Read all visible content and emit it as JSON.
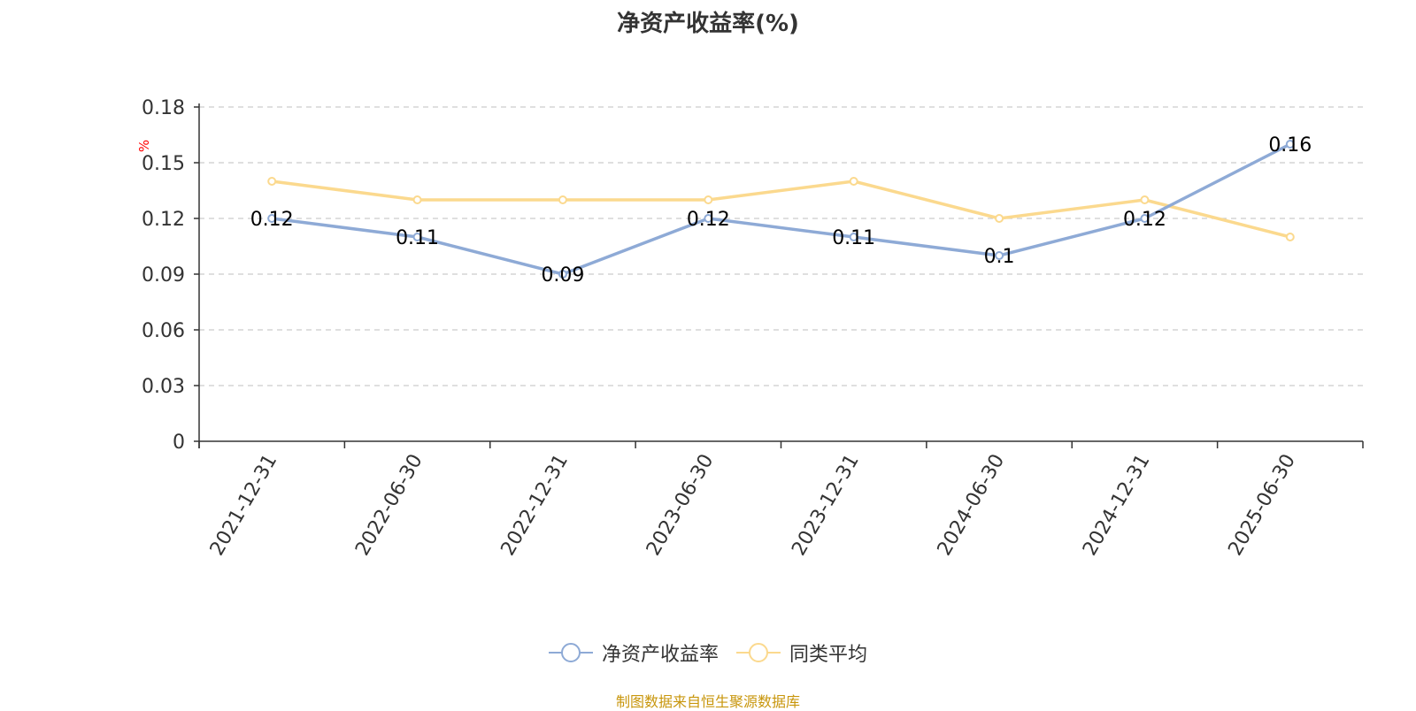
{
  "chart_data": {
    "type": "line",
    "title": "净资产收益率(%)",
    "ylabel": "%",
    "ylim": [
      0,
      0.18
    ],
    "yticks": [
      "0",
      "0.03",
      "0.06",
      "0.09",
      "0.12",
      "0.15",
      "0.18"
    ],
    "grid": true,
    "legend_position": "bottom",
    "categories": [
      "2021-12-31",
      "2022-06-30",
      "2022-12-31",
      "2023-06-30",
      "2023-12-31",
      "2024-06-30",
      "2024-12-31",
      "2025-06-30"
    ],
    "series": [
      {
        "name": "净资产收益率",
        "color": "#8eaad6",
        "values": [
          0.12,
          0.11,
          0.09,
          0.12,
          0.11,
          0.1,
          0.12,
          0.16
        ],
        "labels": [
          "0.12",
          "0.11",
          "0.09",
          "0.12",
          "0.11",
          "0.1",
          "0.12",
          "0.16"
        ]
      },
      {
        "name": "同类平均",
        "color": "#fbd98e",
        "values": [
          0.14,
          0.13,
          0.13,
          0.13,
          0.14,
          0.12,
          0.13,
          0.11
        ]
      }
    ]
  },
  "footer": {
    "source": "制图数据来自恒生聚源数据库"
  },
  "colors": {
    "axis": "#333333",
    "grid": "#cccccc",
    "unit": "#ff0000",
    "source": "#c8960c"
  }
}
